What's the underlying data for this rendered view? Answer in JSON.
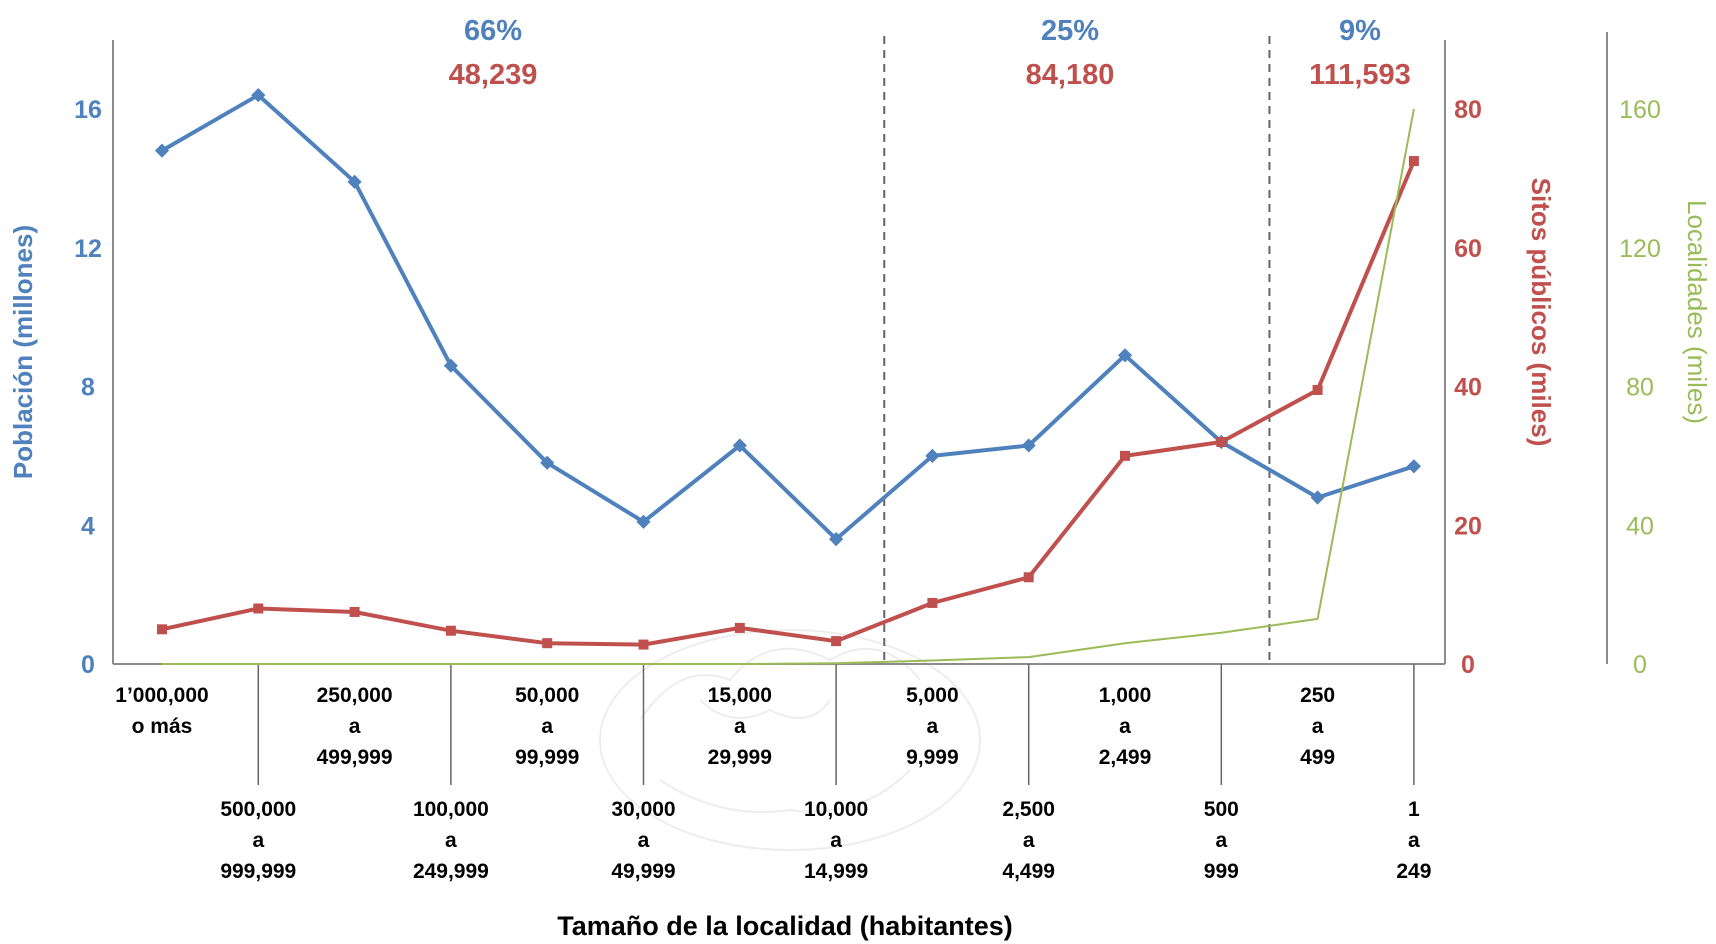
{
  "chart_data": {
    "type": "line",
    "x_title": "Tamaño de la localidad (habitantes)",
    "categories": [
      [
        "1’000,000",
        "o más"
      ],
      [
        "500,000",
        "a",
        "999,999"
      ],
      [
        "250,000",
        "a",
        "499,999"
      ],
      [
        "100,000",
        "a",
        "249,999"
      ],
      [
        "50,000",
        "a",
        "99,999"
      ],
      [
        "30,000",
        "a",
        "49,999"
      ],
      [
        "15,000",
        "a",
        "29,999"
      ],
      [
        "10,000",
        "a",
        "14,999"
      ],
      [
        "5,000",
        "a",
        "9,999"
      ],
      [
        "2,500",
        "a",
        "4,499"
      ],
      [
        "1,000",
        "a",
        "2,499"
      ],
      [
        "500",
        "a",
        "999"
      ],
      [
        "250",
        "a",
        "499"
      ],
      [
        "1",
        "a",
        "249"
      ]
    ],
    "axes": {
      "left": {
        "label": "Población (millones)",
        "ylim": [
          0,
          16
        ],
        "ticks": [
          "0",
          "4",
          "8",
          "12",
          "16"
        ],
        "color": "#4F81BD"
      },
      "right1": {
        "label": "Sitos públicos (miles)",
        "ylim": [
          0,
          80
        ],
        "ticks": [
          "0",
          "20",
          "40",
          "60",
          "80"
        ],
        "color": "#C0504D"
      },
      "right2": {
        "label": "Localidades (miles)",
        "ylim": [
          0,
          160
        ],
        "ticks": [
          "0",
          "40",
          "80",
          "120",
          "160"
        ],
        "color": "#9BBB59"
      }
    },
    "series": [
      {
        "axis": "left",
        "color": "#4F81BD",
        "values": [
          14.8,
          16.4,
          13.9,
          8.6,
          5.8,
          4.1,
          6.3,
          3.6,
          6.0,
          6.3,
          8.9,
          6.4,
          4.8,
          5.7
        ]
      },
      {
        "axis": "right1",
        "color": "#C0504D",
        "values": [
          5.0,
          8.0,
          7.5,
          4.8,
          3.0,
          2.8,
          5.2,
          3.3,
          8.8,
          12.5,
          30.0,
          32.0,
          39.5,
          72.5
        ]
      },
      {
        "axis": "right2",
        "color": "#9BBB59",
        "values": [
          0,
          0,
          0,
          0,
          0,
          0,
          0,
          0.2,
          1.0,
          2.0,
          6.0,
          9.0,
          13.0,
          160
        ]
      }
    ],
    "groups": [
      {
        "percent": "66%",
        "total": "48,239"
      },
      {
        "percent": "25%",
        "total": "84,180"
      },
      {
        "percent": "9%",
        "total": "111,593"
      }
    ],
    "dividers_after_category": [
      7.5,
      11.5
    ]
  }
}
